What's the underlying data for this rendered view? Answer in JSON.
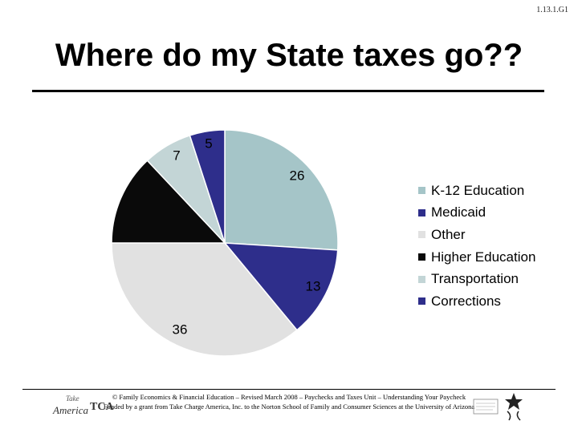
{
  "slide_code": "1.13.1.G1",
  "title": "Where do my State taxes go??",
  "chart_data": {
    "type": "pie",
    "title": "Where do my State taxes go??",
    "slices": [
      {
        "name": "K-12 Education",
        "value": 26,
        "label": "26",
        "color": "#a5c5c8"
      },
      {
        "name": "Medicaid",
        "value": 13,
        "label": "13",
        "color": "#2e2e8b"
      },
      {
        "name": "Other",
        "value": 36,
        "label": "36",
        "color": "#e1e1e1"
      },
      {
        "name": "Higher Education",
        "value": 13,
        "label": "",
        "color": "#0a0a0a"
      },
      {
        "name": "Transportation",
        "value": 7,
        "label": "7",
        "color": "#c3d5d6"
      },
      {
        "name": "Corrections",
        "value": 5,
        "label": "5",
        "color": "#2e2e8b"
      }
    ],
    "legend_position": "right",
    "start_angle": "top, clockwise"
  },
  "legend": [
    {
      "label": "K-12 Education",
      "color": "#a5c5c8"
    },
    {
      "label": "Medicaid",
      "color": "#2e2e8b"
    },
    {
      "label": "Other",
      "color": "#e1e1e1"
    },
    {
      "label": "Higher Education",
      "color": "#0a0a0a"
    },
    {
      "label": "Transportation",
      "color": "#c3d5d6"
    },
    {
      "label": "Corrections",
      "color": "#2e2e8b"
    }
  ],
  "footer": {
    "line1": "© Family Economics & Financial Education – Revised March 2008 – Paychecks and Taxes Unit – Understanding Your Paycheck",
    "line2": "Funded by a grant from Take Charge America, Inc. to the Norton School of Family and Consumer Sciences at the University of Arizona"
  },
  "logos": {
    "left": {
      "line1": "Take",
      "line2": "America",
      "line3": "TCA"
    },
    "right": {
      "name": "university-logo"
    }
  }
}
